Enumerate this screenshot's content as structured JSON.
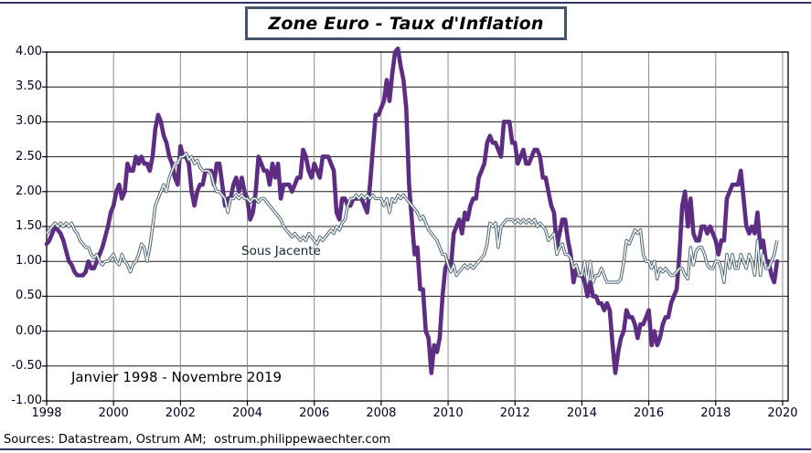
{
  "footer": {
    "sources": "Sources: Datastream, Ostrum AM;  ostrum.philippewaechter.com"
  },
  "colors": {
    "page_rule": "#333366",
    "title_border": "#44546A",
    "h_grid": "#1a1a1a",
    "v_grid": "#8C8C8C",
    "axis_frame": "#000000",
    "headline_line": "#5C2D82",
    "core_line": "#4B6372"
  },
  "chart_data": {
    "type": "line",
    "title": "Zone Euro - Taux d'Inflation",
    "period_label": "Janvier 1998 - Novembre 2019",
    "xlabel": "",
    "ylabel": "",
    "x_unit": "monthly",
    "x_start": "Janvier 1998",
    "x_end": "Novembre 2019",
    "xlim": [
      1998,
      2020.165
    ],
    "ylim": [
      -1.0,
      4.0
    ],
    "x_ticks": [
      1998,
      2000,
      2002,
      2004,
      2006,
      2008,
      2010,
      2012,
      2014,
      2016,
      2018,
      2020
    ],
    "y_ticks": [
      4.0,
      3.5,
      3.0,
      2.5,
      2.0,
      1.5,
      1.0,
      0.5,
      0.0,
      -0.5,
      -1.0
    ],
    "y_tick_labels": [
      "4.00",
      "3.50",
      "3.00",
      "2.50",
      "2.00",
      "1.50",
      "1.00",
      "0.50",
      "0.00",
      "-0.50",
      "-1.00"
    ],
    "grid": {
      "horizontal": true,
      "vertical": true
    },
    "legend_position": "none",
    "series": [
      {
        "name": "Taux d'inflation",
        "color": "#5C2D82",
        "style": "thick",
        "values": [
          1.25,
          1.3,
          1.4,
          1.5,
          1.45,
          1.4,
          1.3,
          1.15,
          1.0,
          0.95,
          0.85,
          0.8,
          0.8,
          0.8,
          0.85,
          1.0,
          0.9,
          0.9,
          1.0,
          1.1,
          1.2,
          1.35,
          1.5,
          1.7,
          1.8,
          2.0,
          2.1,
          1.9,
          2.0,
          2.4,
          2.3,
          2.3,
          2.5,
          2.4,
          2.5,
          2.4,
          2.4,
          2.3,
          2.5,
          2.9,
          3.1,
          3.0,
          2.8,
          2.7,
          2.5,
          2.4,
          2.2,
          2.1,
          2.65,
          2.5,
          2.5,
          2.4,
          2.0,
          1.8,
          2.0,
          2.1,
          2.1,
          2.3,
          2.3,
          2.3,
          2.1,
          2.4,
          2.4,
          2.1,
          1.8,
          1.9,
          1.9,
          2.1,
          2.2,
          2.0,
          2.2,
          2.0,
          1.9,
          1.6,
          1.7,
          2.0,
          2.5,
          2.4,
          2.3,
          2.3,
          2.1,
          2.4,
          2.2,
          2.4,
          1.9,
          2.1,
          2.1,
          2.1,
          2.0,
          2.1,
          2.2,
          2.2,
          2.6,
          2.5,
          2.3,
          2.2,
          2.4,
          2.3,
          2.2,
          2.5,
          2.5,
          2.5,
          2.4,
          2.3,
          1.7,
          1.6,
          1.9,
          1.9,
          1.8,
          1.8,
          1.9,
          1.9,
          1.9,
          1.9,
          1.8,
          1.7,
          2.1,
          2.6,
          3.1,
          3.1,
          3.2,
          3.3,
          3.6,
          3.3,
          3.7,
          4.0,
          4.05,
          3.8,
          3.6,
          3.2,
          2.1,
          1.6,
          1.1,
          1.2,
          0.6,
          0.6,
          0.0,
          -0.1,
          -0.6,
          -0.2,
          -0.3,
          -0.1,
          0.5,
          0.9,
          1.0,
          0.9,
          1.4,
          1.5,
          1.6,
          1.4,
          1.7,
          1.6,
          1.8,
          1.9,
          1.9,
          2.2,
          2.3,
          2.4,
          2.7,
          2.8,
          2.7,
          2.7,
          2.6,
          2.5,
          3.0,
          3.0,
          3.0,
          2.7,
          2.7,
          2.4,
          2.5,
          2.6,
          2.4,
          2.4,
          2.5,
          2.6,
          2.6,
          2.5,
          2.2,
          2.2,
          2.0,
          1.8,
          1.7,
          1.2,
          1.4,
          1.6,
          1.6,
          1.3,
          1.1,
          0.7,
          0.9,
          0.8,
          0.8,
          0.7,
          0.5,
          0.7,
          0.5,
          0.5,
          0.4,
          0.4,
          0.3,
          0.4,
          0.3,
          -0.2,
          -0.6,
          -0.3,
          -0.1,
          0.0,
          0.3,
          0.2,
          0.2,
          0.1,
          -0.1,
          0.1,
          0.1,
          0.2,
          0.3,
          -0.2,
          0.0,
          -0.2,
          -0.1,
          0.1,
          0.2,
          0.2,
          0.4,
          0.5,
          0.6,
          1.1,
          1.8,
          2.0,
          1.5,
          1.9,
          1.4,
          1.3,
          1.3,
          1.5,
          1.5,
          1.4,
          1.5,
          1.4,
          1.3,
          1.1,
          1.3,
          1.3,
          1.9,
          2.0,
          2.1,
          2.1,
          2.1,
          2.3,
          1.9,
          1.5,
          1.4,
          1.5,
          1.4,
          1.7,
          1.2,
          1.3,
          1.0,
          1.0,
          0.8,
          0.7,
          1.0
        ]
      },
      {
        "name": "Sous Jacente",
        "color": "#4B6372",
        "style": "double",
        "values": [
          1.4,
          1.45,
          1.5,
          1.55,
          1.5,
          1.55,
          1.5,
          1.55,
          1.5,
          1.55,
          1.45,
          1.4,
          1.3,
          1.25,
          1.2,
          1.2,
          1.1,
          1.05,
          1.1,
          1.0,
          0.95,
          1.0,
          1.0,
          1.05,
          1.1,
          1.0,
          0.95,
          1.1,
          1.0,
          0.95,
          0.85,
          0.95,
          1.0,
          1.1,
          1.25,
          1.2,
          1.0,
          1.2,
          1.5,
          1.8,
          1.9,
          2.0,
          2.1,
          2.0,
          2.2,
          2.3,
          2.4,
          2.4,
          2.5,
          2.5,
          2.55,
          2.45,
          2.5,
          2.4,
          2.45,
          2.35,
          2.3,
          2.3,
          2.3,
          2.25,
          2.1,
          2.0,
          2.0,
          1.95,
          1.9,
          1.7,
          1.9,
          1.9,
          1.95,
          1.9,
          1.95,
          1.9,
          1.9,
          1.85,
          1.9,
          1.9,
          1.85,
          1.9,
          1.9,
          1.85,
          1.8,
          1.75,
          1.7,
          1.65,
          1.6,
          1.5,
          1.45,
          1.4,
          1.35,
          1.4,
          1.35,
          1.3,
          1.35,
          1.3,
          1.4,
          1.35,
          1.3,
          1.25,
          1.35,
          1.3,
          1.35,
          1.4,
          1.45,
          1.4,
          1.5,
          1.45,
          1.55,
          1.6,
          1.8,
          1.9,
          1.9,
          1.95,
          1.9,
          1.95,
          1.9,
          1.95,
          1.9,
          1.95,
          1.9,
          1.9,
          1.9,
          1.8,
          1.9,
          1.7,
          1.9,
          1.85,
          1.95,
          1.9,
          1.95,
          1.9,
          1.85,
          1.8,
          1.75,
          1.7,
          1.6,
          1.65,
          1.55,
          1.45,
          1.4,
          1.35,
          1.3,
          1.2,
          1.1,
          1.1,
          0.95,
          0.85,
          0.95,
          0.8,
          0.85,
          0.9,
          0.95,
          0.9,
          0.95,
          0.9,
          0.95,
          1.0,
          1.05,
          1.1,
          1.25,
          1.55,
          1.5,
          1.55,
          1.2,
          1.5,
          1.55,
          1.6,
          1.6,
          1.6,
          1.55,
          1.6,
          1.55,
          1.6,
          1.55,
          1.6,
          1.55,
          1.6,
          1.5,
          1.55,
          1.5,
          1.45,
          1.3,
          1.35,
          1.4,
          1.1,
          1.2,
          1.25,
          1.1,
          1.1,
          1.05,
          0.9,
          0.95,
          0.8,
          0.8,
          1.0,
          0.7,
          1.0,
          0.7,
          0.8,
          0.8,
          0.9,
          0.8,
          0.7,
          0.7,
          0.7,
          0.7,
          0.7,
          0.75,
          1.0,
          1.3,
          1.25,
          1.35,
          1.45,
          1.4,
          1.45,
          1.1,
          1.0,
          1.0,
          0.9,
          1.0,
          0.75,
          0.9,
          0.85,
          0.9,
          0.85,
          0.8,
          0.8,
          0.85,
          0.9,
          0.9,
          0.8,
          0.75,
          1.2,
          0.95,
          1.15,
          1.2,
          1.2,
          1.1,
          0.95,
          0.9,
          0.9,
          1.0,
          1.0,
          0.9,
          0.7,
          1.1,
          0.9,
          1.1,
          0.9,
          0.9,
          1.1,
          1.0,
          0.9,
          1.1,
          1.0,
          0.8,
          1.3,
          0.8,
          1.1,
          0.9,
          0.9,
          1.0,
          1.1,
          1.3
        ]
      }
    ]
  }
}
